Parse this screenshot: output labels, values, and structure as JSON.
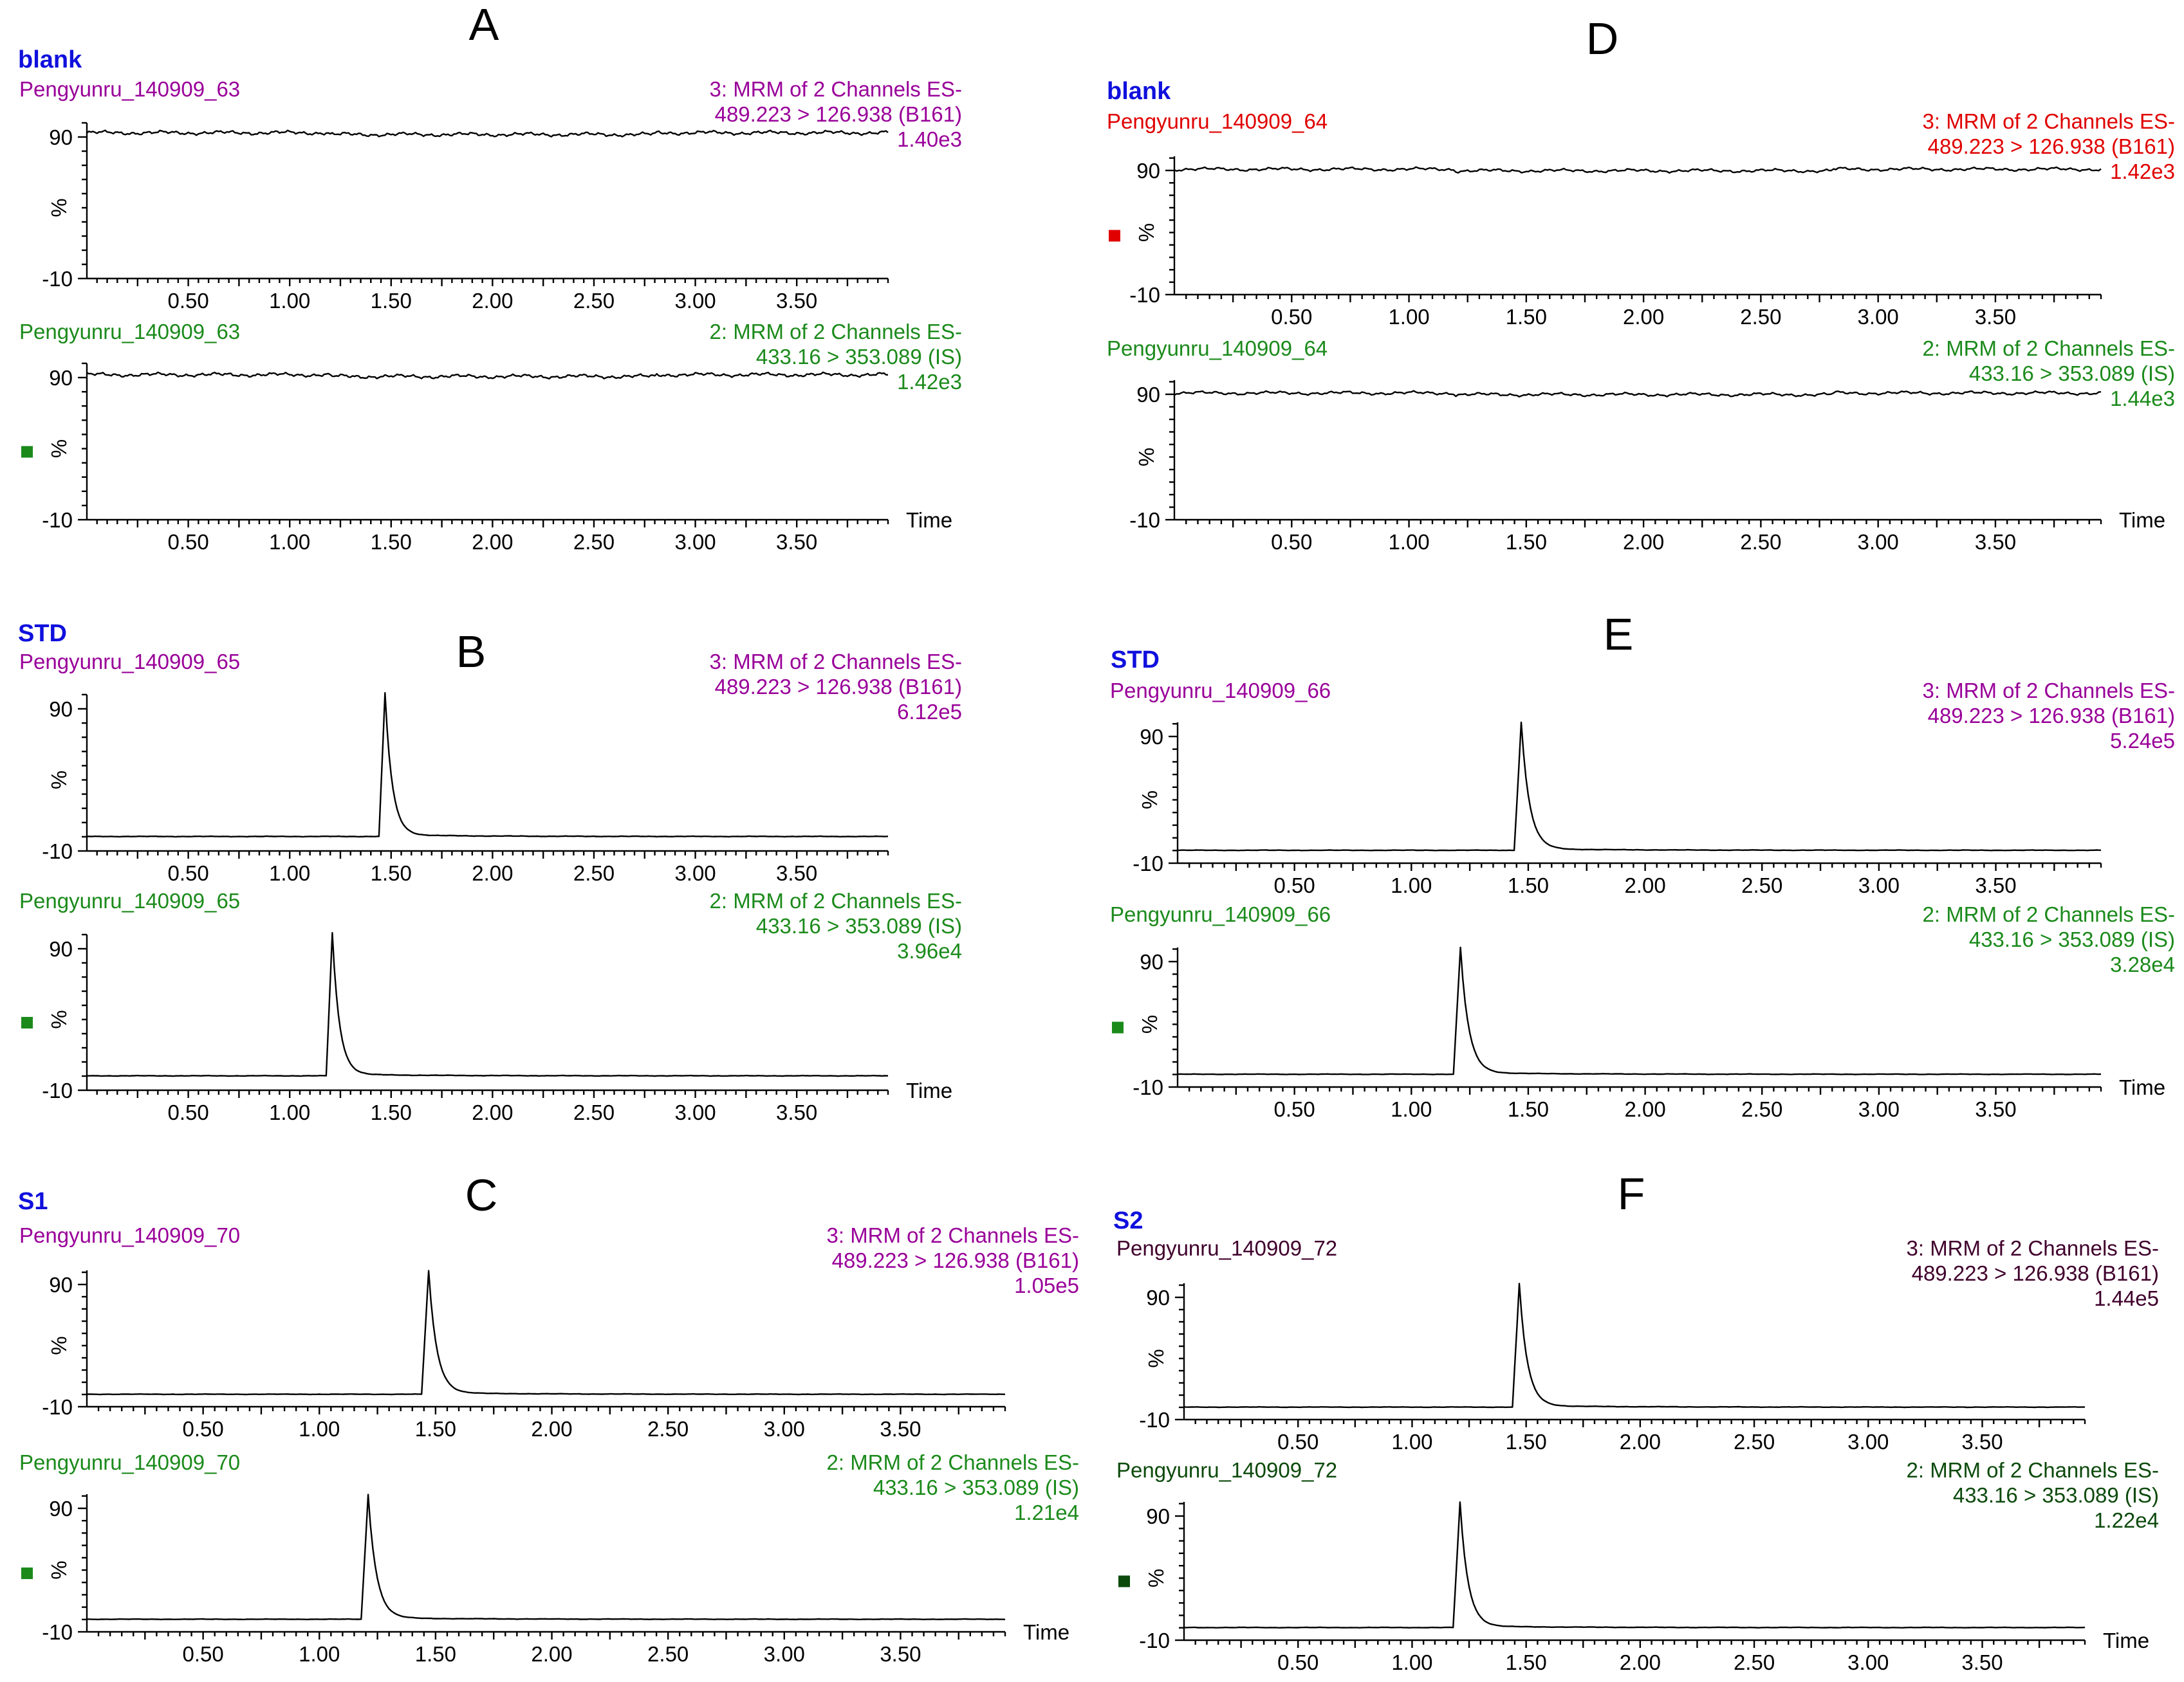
{
  "colors": {
    "sample_label": "#1010dd",
    "magenta": "#990099",
    "green": "#1b8a1b",
    "red": "#e00000",
    "dark_purple": "#40002c",
    "dark_green": "#0c4a0c"
  },
  "chart_data": [
    {
      "type": "line",
      "panel_label": "A",
      "sample_label": "blank",
      "traces": [
        {
          "name": "Pengyunru_140909_63",
          "channel": "3: MRM of 2 Channels ES-",
          "transition": "489.223 > 126.938 (B161)",
          "max_intensity": "1.40e3",
          "color": "#990099",
          "marker": "",
          "time_label": "",
          "profile": "flat",
          "peak_time": null,
          "baseline": 93,
          "xlim": [
            0.0,
            3.95
          ],
          "ylim": [
            -10,
            100
          ],
          "yticks": [
            "90",
            "%",
            "-10"
          ],
          "xticks": [
            "0.50",
            "1.00",
            "1.50",
            "2.00",
            "2.50",
            "3.00",
            "3.50"
          ]
        },
        {
          "name": "Pengyunru_140909_63",
          "channel": "2: MRM of 2 Channels ES-",
          "transition": "433.16 > 353.089 (IS)",
          "max_intensity": "1.42e3",
          "color": "#1b8a1b",
          "marker": "#1b8a1b",
          "time_label": "Time",
          "profile": "flat",
          "peak_time": null,
          "baseline": 92,
          "xlim": [
            0.0,
            3.95
          ],
          "ylim": [
            -10,
            100
          ],
          "yticks": [
            "90",
            "%",
            "-10"
          ],
          "xticks": [
            "0.50",
            "1.00",
            "1.50",
            "2.00",
            "2.50",
            "3.00",
            "3.50"
          ]
        }
      ]
    },
    {
      "type": "line",
      "panel_label": "B",
      "sample_label": "STD",
      "traces": [
        {
          "name": "Pengyunru_140909_65",
          "channel": "3: MRM of 2 Channels ES-",
          "transition": "489.223 > 126.938 (B161)",
          "max_intensity": "6.12e5",
          "color": "#990099",
          "marker": "",
          "time_label": "",
          "profile": "peak",
          "peak_time": 1.47,
          "baseline": 0,
          "xlim": [
            0.0,
            3.95
          ],
          "ylim": [
            -10,
            100
          ],
          "yticks": [
            "90",
            "%",
            "-10"
          ],
          "xticks": [
            "0.50",
            "1.00",
            "1.50",
            "2.00",
            "2.50",
            "3.00",
            "3.50"
          ]
        },
        {
          "name": "Pengyunru_140909_65",
          "channel": "2: MRM of 2 Channels ES-",
          "transition": "433.16 > 353.089 (IS)",
          "max_intensity": "3.96e4",
          "color": "#1b8a1b",
          "marker": "#1b8a1b",
          "time_label": "Time",
          "profile": "peak",
          "peak_time": 1.21,
          "baseline": 0,
          "xlim": [
            0.0,
            3.95
          ],
          "ylim": [
            -10,
            100
          ],
          "yticks": [
            "90",
            "%",
            "-10"
          ],
          "xticks": [
            "0.50",
            "1.00",
            "1.50",
            "2.00",
            "2.50",
            "3.00",
            "3.50"
          ]
        }
      ]
    },
    {
      "type": "line",
      "panel_label": "C",
      "sample_label": "S1",
      "traces": [
        {
          "name": "Pengyunru_140909_70",
          "channel": "3: MRM of 2 Channels ES-",
          "transition": "489.223 > 126.938 (B161)",
          "max_intensity": "1.05e5",
          "color": "#990099",
          "marker": "",
          "time_label": "",
          "profile": "peak",
          "peak_time": 1.47,
          "baseline": 0,
          "xlim": [
            0.0,
            3.95
          ],
          "ylim": [
            -10,
            100
          ],
          "yticks": [
            "90",
            "%",
            "-10"
          ],
          "xticks": [
            "0.50",
            "1.00",
            "1.50",
            "2.00",
            "2.50",
            "3.00",
            "3.50"
          ]
        },
        {
          "name": "Pengyunru_140909_70",
          "channel": "2: MRM of 2 Channels ES-",
          "transition": "433.16 > 353.089 (IS)",
          "max_intensity": "1.21e4",
          "color": "#1b8a1b",
          "marker": "#1b8a1b",
          "time_label": "Time",
          "profile": "peak",
          "peak_time": 1.21,
          "baseline": 0,
          "xlim": [
            0.0,
            3.95
          ],
          "ylim": [
            -10,
            100
          ],
          "yticks": [
            "90",
            "%",
            "-10"
          ],
          "xticks": [
            "0.50",
            "1.00",
            "1.50",
            "2.00",
            "2.50",
            "3.00",
            "3.50"
          ]
        }
      ]
    },
    {
      "type": "line",
      "panel_label": "D",
      "sample_label": "blank",
      "traces": [
        {
          "name": "Pengyunru_140909_64",
          "channel": "3: MRM of 2 Channels ES-",
          "transition": "489.223 > 126.938 (B161)",
          "max_intensity": "1.42e3",
          "color": "#e00000",
          "marker": "#e00000",
          "time_label": "",
          "profile": "flat",
          "peak_time": null,
          "baseline": 91,
          "xlim": [
            0.0,
            3.95
          ],
          "ylim": [
            -10,
            100
          ],
          "yticks": [
            "90",
            "%",
            "-10"
          ],
          "xticks": [
            "0.50",
            "1.00",
            "1.50",
            "2.00",
            "2.50",
            "3.00",
            "3.50"
          ]
        },
        {
          "name": "Pengyunru_140909_64",
          "channel": "2: MRM of 2 Channels ES-",
          "transition": "433.16 > 353.089 (IS)",
          "max_intensity": "1.44e3",
          "color": "#1b8a1b",
          "marker": "",
          "time_label": "Time",
          "profile": "flat",
          "peak_time": null,
          "baseline": 91,
          "xlim": [
            0.0,
            3.95
          ],
          "ylim": [
            -10,
            100
          ],
          "yticks": [
            "90",
            "%",
            "-10"
          ],
          "xticks": [
            "0.50",
            "1.00",
            "1.50",
            "2.00",
            "2.50",
            "3.00",
            "3.50"
          ]
        }
      ]
    },
    {
      "type": "line",
      "panel_label": "E",
      "sample_label": "STD",
      "traces": [
        {
          "name": "Pengyunru_140909_66",
          "channel": "3: MRM of 2 Channels ES-",
          "transition": "489.223 > 126.938 (B161)",
          "max_intensity": "5.24e5",
          "color": "#990099",
          "marker": "",
          "time_label": "",
          "profile": "peak",
          "peak_time": 1.47,
          "baseline": 0,
          "xlim": [
            0.0,
            3.95
          ],
          "ylim": [
            -10,
            100
          ],
          "yticks": [
            "90",
            "%",
            "-10"
          ],
          "xticks": [
            "0.50",
            "1.00",
            "1.50",
            "2.00",
            "2.50",
            "3.00",
            "3.50"
          ]
        },
        {
          "name": "Pengyunru_140909_66",
          "channel": "2: MRM of 2 Channels ES-",
          "transition": "433.16 > 353.089 (IS)",
          "max_intensity": "3.28e4",
          "color": "#1b8a1b",
          "marker": "#1b8a1b",
          "time_label": "Time",
          "profile": "peak",
          "peak_time": 1.21,
          "baseline": 0,
          "xlim": [
            0.0,
            3.95
          ],
          "ylim": [
            -10,
            100
          ],
          "yticks": [
            "90",
            "%",
            "-10"
          ],
          "xticks": [
            "0.50",
            "1.00",
            "1.50",
            "2.00",
            "2.50",
            "3.00",
            "3.50"
          ]
        }
      ]
    },
    {
      "type": "line",
      "panel_label": "F",
      "sample_label": "S2",
      "traces": [
        {
          "name": "Pengyunru_140909_72",
          "channel": "3: MRM of 2 Channels ES-",
          "transition": "489.223 > 126.938 (B161)",
          "max_intensity": "1.44e5",
          "color": "#40002c",
          "marker": "",
          "time_label": "",
          "profile": "peak",
          "peak_time": 1.47,
          "baseline": 0,
          "xlim": [
            0.0,
            3.95
          ],
          "ylim": [
            -10,
            100
          ],
          "yticks": [
            "90",
            "%",
            "-10"
          ],
          "xticks": [
            "0.50",
            "1.00",
            "1.50",
            "2.00",
            "2.50",
            "3.00",
            "3.50"
          ]
        },
        {
          "name": "Pengyunru_140909_72",
          "channel": "2: MRM of 2 Channels ES-",
          "transition": "433.16 > 353.089 (IS)",
          "max_intensity": "1.22e4",
          "color": "#0c4a0c",
          "marker": "#0c4a0c",
          "time_label": "Time",
          "profile": "peak",
          "peak_time": 1.21,
          "baseline": 0,
          "xlim": [
            0.0,
            3.95
          ],
          "ylim": [
            -10,
            100
          ],
          "yticks": [
            "90",
            "%",
            "-10"
          ],
          "xticks": [
            "0.50",
            "1.00",
            "1.50",
            "2.00",
            "2.50",
            "3.00",
            "3.50"
          ]
        }
      ]
    }
  ]
}
